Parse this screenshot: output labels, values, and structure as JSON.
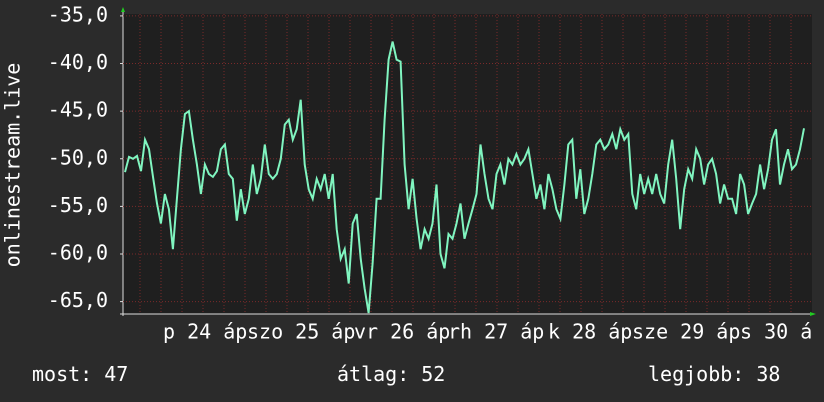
{
  "chart_data": {
    "type": "line",
    "y_axis_label": "onlinestream.live",
    "color": "#80f5c0",
    "ylim": [
      -66.3,
      -34.8
    ],
    "yticks": [
      {
        "value": -35,
        "label": "-35,0"
      },
      {
        "value": -40,
        "label": "-40,0"
      },
      {
        "value": -45,
        "label": "-45,0"
      },
      {
        "value": -50,
        "label": "-50,0"
      },
      {
        "value": -55,
        "label": "-55,0"
      },
      {
        "value": -60,
        "label": "-60,0"
      },
      {
        "value": -65,
        "label": "-65,0"
      }
    ],
    "grid": true,
    "x_labels": [
      "p 24 áp",
      "szo 25 áp",
      "vr 26 áp",
      "rh 27 áp",
      "k 28 áp",
      "sze 29 áp",
      "s 30 á"
    ],
    "values": [
      -51.4,
      -49.8,
      -50.0,
      -49.7,
      -51.3,
      -48.0,
      -49.0,
      -51.9,
      -54.7,
      -56.8,
      -53.7,
      -55.3,
      -59.5,
      -54.2,
      -49.0,
      -45.3,
      -45.0,
      -48.0,
      -50.6,
      -53.7,
      -50.6,
      -51.6,
      -51.9,
      -51.3,
      -49.0,
      -48.5,
      -51.6,
      -52.1,
      -56.5,
      -53.2,
      -55.8,
      -54.2,
      -50.6,
      -53.7,
      -52.1,
      -48.5,
      -51.6,
      -52.1,
      -51.6,
      -50.0,
      -46.4,
      -45.9,
      -48.0,
      -46.9,
      -43.8,
      -50.6,
      -53.2,
      -54.2,
      -52.1,
      -53.2,
      -51.6,
      -54.2,
      -51.6,
      -57.4,
      -60.5,
      -59.5,
      -63.1,
      -56.8,
      -55.8,
      -60.5,
      -63.6,
      -66.2,
      -61.0,
      -54.2,
      -54.2,
      -45.9,
      -39.6,
      -37.7,
      -39.6,
      -39.8,
      -50.6,
      -55.3,
      -52.1,
      -56.3,
      -59.5,
      -57.4,
      -58.4,
      -56.8,
      -52.7,
      -60.0,
      -61.5,
      -57.9,
      -58.4,
      -56.8,
      -54.7,
      -58.4,
      -56.8,
      -55.3,
      -53.7,
      -48.5,
      -51.6,
      -54.2,
      -55.3,
      -51.6,
      -50.6,
      -52.7,
      -50.0,
      -50.6,
      -49.5,
      -50.6,
      -50.0,
      -49.0,
      -51.6,
      -54.2,
      -52.7,
      -55.3,
      -51.6,
      -53.2,
      -55.3,
      -56.3,
      -52.7,
      -48.5,
      -48.0,
      -54.2,
      -51.1,
      -55.8,
      -54.2,
      -51.6,
      -48.5,
      -48.0,
      -49.0,
      -48.5,
      -47.4,
      -49.0,
      -46.9,
      -48.0,
      -47.4,
      -53.7,
      -55.3,
      -51.6,
      -53.7,
      -52.1,
      -53.7,
      -51.6,
      -53.7,
      -54.7,
      -50.6,
      -48.0,
      -52.1,
      -57.4,
      -53.2,
      -51.1,
      -52.1,
      -49.0,
      -50.0,
      -52.7,
      -50.6,
      -50.0,
      -51.6,
      -54.7,
      -52.7,
      -54.2,
      -54.2,
      -55.8,
      -51.6,
      -52.7,
      -55.8,
      -54.7,
      -53.7,
      -50.6,
      -53.2,
      -51.1,
      -48.0,
      -46.9,
      -52.7,
      -50.6,
      -49.0,
      -51.1,
      -50.6,
      -49.0,
      -46.8
    ],
    "stats": [
      {
        "label": "most:",
        "value": 47
      },
      {
        "label": "átlag:",
        "value": 52
      },
      {
        "label": "legjobb:",
        "value": 38
      }
    ]
  }
}
